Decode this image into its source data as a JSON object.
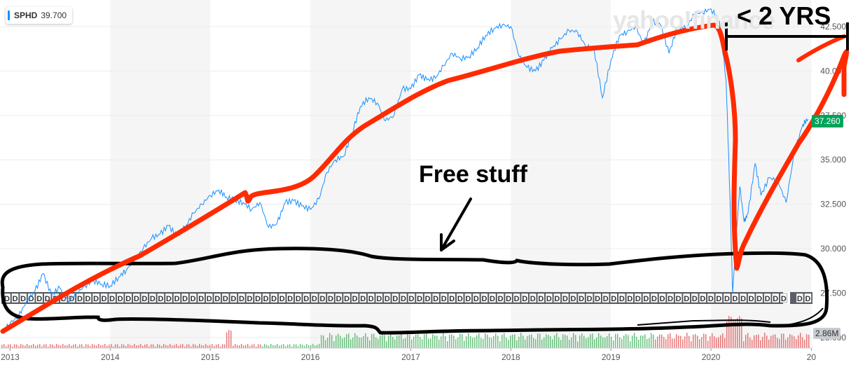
{
  "ticker": {
    "symbol": "SPHD",
    "value": "39.700"
  },
  "logo": "yahoo!finance",
  "annotations": {
    "free_stuff": "Free stuff",
    "two_years": "< 2 YRS"
  },
  "current_price_label": "37.260",
  "volume_label": "2.86M",
  "colors": {
    "line": "#188fff",
    "red_marker": "#ff2a00",
    "black_marker": "#000000",
    "volume_up": "#2ea84a",
    "volume_down": "#e04040",
    "current_price": "#00a35a"
  },
  "chart_data": {
    "type": "line",
    "series": [
      {
        "values": [
          [
            "2012-12-01",
            25.3
          ],
          [
            "2013-01-01",
            25.8
          ],
          [
            "2013-02-01",
            26.2
          ],
          [
            "2013-03-01",
            27.0
          ],
          [
            "2013-04-01",
            27.6
          ],
          [
            "2013-05-01",
            28.6
          ],
          [
            "2013-06-01",
            27.4
          ],
          [
            "2013-07-01",
            27.8
          ],
          [
            "2013-08-01",
            27.0
          ],
          [
            "2013-09-01",
            27.5
          ],
          [
            "2013-10-01",
            27.9
          ],
          [
            "2013-11-01",
            28.2
          ],
          [
            "2013-12-01",
            28.0
          ],
          [
            "2014-01-01",
            27.9
          ],
          [
            "2014-02-01",
            28.4
          ],
          [
            "2014-03-01",
            28.8
          ],
          [
            "2014-04-01",
            29.4
          ],
          [
            "2014-05-01",
            30.0
          ],
          [
            "2014-06-01",
            30.6
          ],
          [
            "2014-07-01",
            30.8
          ],
          [
            "2014-08-01",
            31.3
          ],
          [
            "2014-09-01",
            30.7
          ],
          [
            "2014-10-01",
            31.2
          ],
          [
            "2014-11-01",
            32.0
          ],
          [
            "2014-12-01",
            32.5
          ],
          [
            "2015-01-01",
            33.0
          ],
          [
            "2015-02-01",
            33.3
          ],
          [
            "2015-03-01",
            32.9
          ],
          [
            "2015-04-01",
            32.7
          ],
          [
            "2015-05-01",
            32.6
          ],
          [
            "2015-06-01",
            32.2
          ],
          [
            "2015-07-01",
            32.6
          ],
          [
            "2015-08-01",
            31.2
          ],
          [
            "2015-09-01",
            31.4
          ],
          [
            "2015-10-01",
            32.6
          ],
          [
            "2015-11-01",
            32.7
          ],
          [
            "2015-12-01",
            32.4
          ],
          [
            "2016-01-01",
            32.2
          ],
          [
            "2016-02-01",
            32.8
          ],
          [
            "2016-03-01",
            34.3
          ],
          [
            "2016-04-01",
            35.0
          ],
          [
            "2016-05-01",
            35.2
          ],
          [
            "2016-06-01",
            36.5
          ],
          [
            "2016-07-01",
            38.0
          ],
          [
            "2016-08-01",
            38.5
          ],
          [
            "2016-09-01",
            38.2
          ],
          [
            "2016-10-01",
            37.2
          ],
          [
            "2016-11-01",
            37.5
          ],
          [
            "2016-12-01",
            39.0
          ],
          [
            "2017-01-01",
            39.0
          ],
          [
            "2017-02-01",
            39.8
          ],
          [
            "2017-03-01",
            39.5
          ],
          [
            "2017-04-01",
            39.6
          ],
          [
            "2017-05-01",
            40.3
          ],
          [
            "2017-06-01",
            41.0
          ],
          [
            "2017-07-01",
            40.7
          ],
          [
            "2017-08-01",
            40.8
          ],
          [
            "2017-09-01",
            41.3
          ],
          [
            "2017-10-01",
            42.0
          ],
          [
            "2017-11-01",
            42.4
          ],
          [
            "2017-12-01",
            42.6
          ],
          [
            "2018-01-01",
            42.5
          ],
          [
            "2018-02-01",
            40.8
          ],
          [
            "2018-03-01",
            40.2
          ],
          [
            "2018-04-01",
            40.0
          ],
          [
            "2018-05-01",
            40.6
          ],
          [
            "2018-06-01",
            41.3
          ],
          [
            "2018-07-01",
            41.8
          ],
          [
            "2018-08-01",
            42.3
          ],
          [
            "2018-09-01",
            42.2
          ],
          [
            "2018-10-01",
            41.4
          ],
          [
            "2018-11-01",
            41.2
          ],
          [
            "2018-12-01",
            38.5
          ],
          [
            "2019-01-01",
            40.6
          ],
          [
            "2019-02-01",
            42.0
          ],
          [
            "2019-03-01",
            42.2
          ],
          [
            "2019-04-01",
            42.5
          ],
          [
            "2019-05-01",
            41.5
          ],
          [
            "2019-06-01",
            42.8
          ],
          [
            "2019-07-01",
            42.6
          ],
          [
            "2019-08-01",
            41.0
          ],
          [
            "2019-09-01",
            42.5
          ],
          [
            "2019-10-01",
            42.4
          ],
          [
            "2019-11-01",
            43.2
          ],
          [
            "2019-12-01",
            43.3
          ],
          [
            "2020-01-01",
            43.5
          ],
          [
            "2020-02-01",
            42.8
          ],
          [
            "2020-02-25",
            39.5
          ],
          [
            "2020-03-10",
            33.0
          ],
          [
            "2020-03-20",
            27.5
          ],
          [
            "2020-04-01",
            30.5
          ],
          [
            "2020-04-15",
            33.5
          ],
          [
            "2020-05-01",
            31.5
          ],
          [
            "2020-05-15",
            32.0
          ],
          [
            "2020-06-10",
            34.8
          ],
          [
            "2020-07-01",
            33.0
          ],
          [
            "2020-08-01",
            34.0
          ],
          [
            "2020-09-01",
            33.8
          ],
          [
            "2020-10-01",
            32.6
          ],
          [
            "2020-11-01",
            35.5
          ],
          [
            "2020-12-01",
            37.0
          ],
          [
            "2020-12-20",
            37.3
          ]
        ]
      }
    ],
    "x_tick_labels": [
      "2013",
      "2014",
      "2015",
      "2016",
      "2017",
      "2018",
      "2019",
      "2020",
      "20"
    ],
    "y_tick_labels": [
      "42.500",
      "40.000",
      "37.500",
      "35.000",
      "32.500",
      "30.000",
      "27.500",
      "25.000"
    ],
    "ylim": [
      24.4,
      44.0
    ],
    "xlim": [
      "2012-11-25",
      "2020-12-31"
    ],
    "grid": true,
    "dividend_marker": "D",
    "dividend_marker_count": 100
  }
}
